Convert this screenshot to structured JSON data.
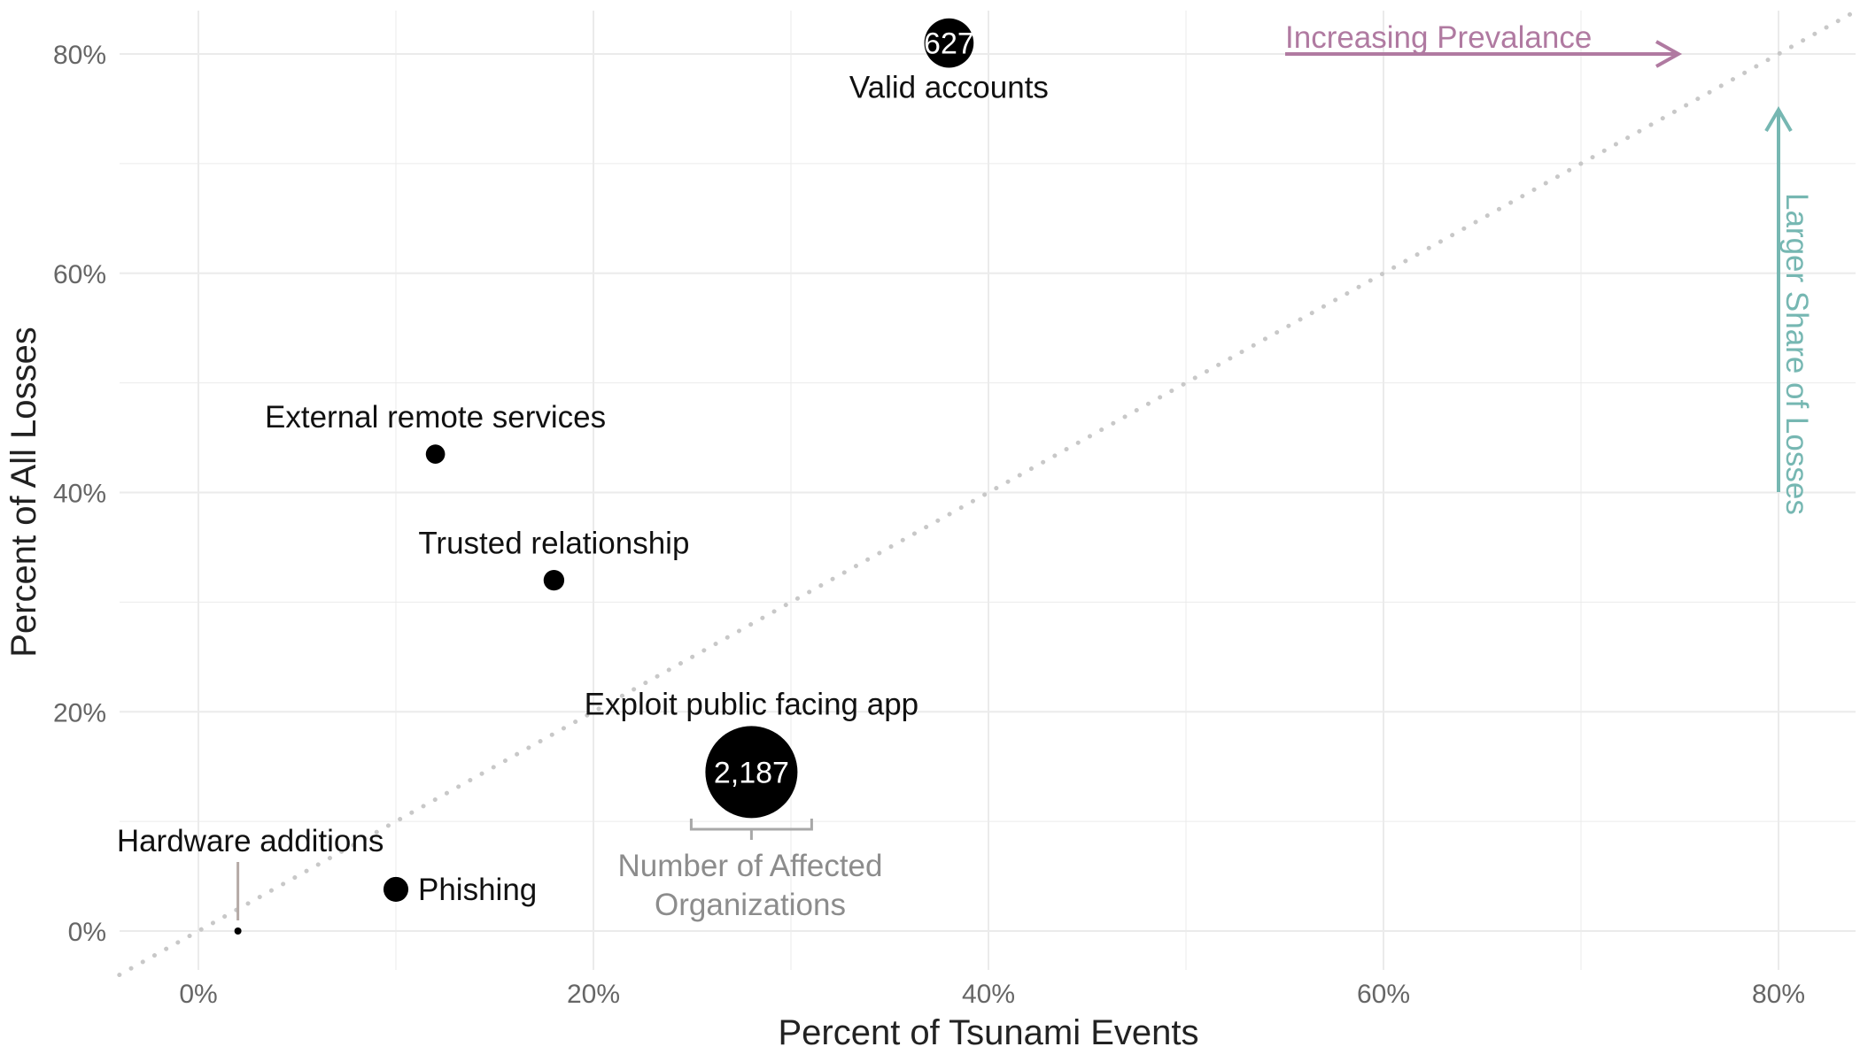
{
  "chart_data": {
    "type": "scatter",
    "xlabel": "Percent of Tsunami Events",
    "ylabel": "Percent of All Losses",
    "xlim": [
      -4,
      84
    ],
    "ylim": [
      -4,
      84
    ],
    "x_ticks": [
      0,
      20,
      40,
      60,
      80
    ],
    "y_ticks": [
      0,
      20,
      40,
      60,
      80
    ],
    "x_tick_labels": [
      "0%",
      "20%",
      "40%",
      "60%",
      "80%"
    ],
    "y_tick_labels": [
      "0%",
      "20%",
      "40%",
      "60%",
      "80%"
    ],
    "grid": true,
    "reference_line": "y = x (dotted)",
    "points": [
      {
        "label": "Valid accounts",
        "x": 38,
        "y": 81,
        "size_value": 627,
        "value_label": "627"
      },
      {
        "label": "External remote services",
        "x": 12,
        "y": 43.5,
        "size_value": 95,
        "value_label": ""
      },
      {
        "label": "Trusted relationship",
        "x": 18,
        "y": 32,
        "size_value": 110,
        "value_label": ""
      },
      {
        "label": "Exploit public facing app",
        "x": 28,
        "y": 14.5,
        "size_value": 2187,
        "value_label": "2,187"
      },
      {
        "label": "Phishing",
        "x": 10,
        "y": 3.8,
        "size_value": 160,
        "value_label": ""
      },
      {
        "label": "Hardware additions",
        "x": 2,
        "y": 0,
        "size_value": 6,
        "value_label": ""
      }
    ],
    "size_legend": {
      "label_line1": "Number of Affected",
      "label_line2": "Organizations"
    },
    "annotations": {
      "prevalence": "Increasing Prevalance",
      "losses": "Larger Share of Losses"
    }
  },
  "colors": {
    "point": "#000000",
    "grid": "#ebebeb",
    "reference": "#c8c8c8",
    "prevalence_arrow": "#b07aa1",
    "losses_arrow": "#76b7b2",
    "legend": "#a8a8a8"
  }
}
